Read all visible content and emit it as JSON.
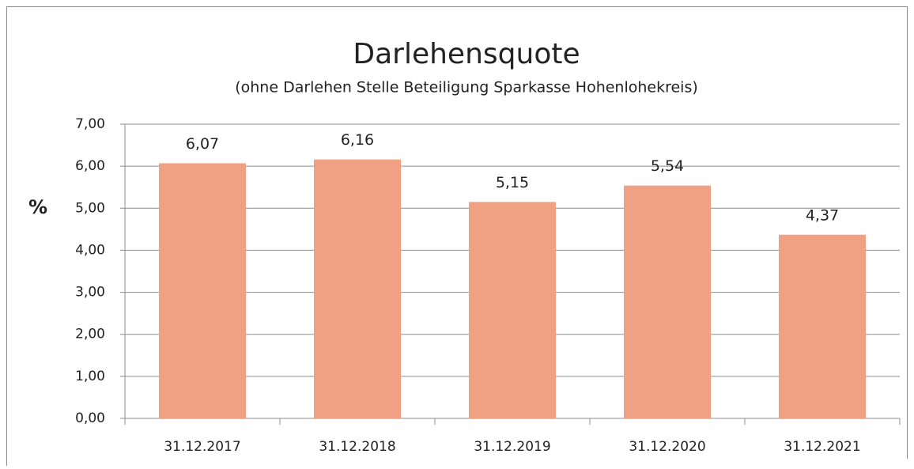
{
  "chart_data": {
    "type": "bar",
    "title": "Darlehensquote",
    "subtitle": "(ohne Darlehen Stelle Beteiligung Sparkasse Hohenlohekreis)",
    "y_label": "%",
    "categories": [
      "31.12.2017",
      "31.12.2018",
      "31.12.2019",
      "31.12.2020",
      "31.12.2021"
    ],
    "values": [
      6.07,
      6.16,
      5.15,
      5.54,
      4.37
    ],
    "value_labels": [
      "6,07",
      "6,16",
      "5,15",
      "5,54",
      "4,37"
    ],
    "color": "#f0a083",
    "ylim": [
      0,
      7
    ],
    "yticks": [
      {
        "value": 0,
        "label": "0,00"
      },
      {
        "value": 1,
        "label": "1,00"
      },
      {
        "value": 2,
        "label": "2,00"
      },
      {
        "value": 3,
        "label": "3,00"
      },
      {
        "value": 4,
        "label": "4,00"
      },
      {
        "value": 5,
        "label": "5,00"
      },
      {
        "value": 6,
        "label": "6,00"
      },
      {
        "value": 7,
        "label": "7,00"
      }
    ],
    "grid": true
  }
}
